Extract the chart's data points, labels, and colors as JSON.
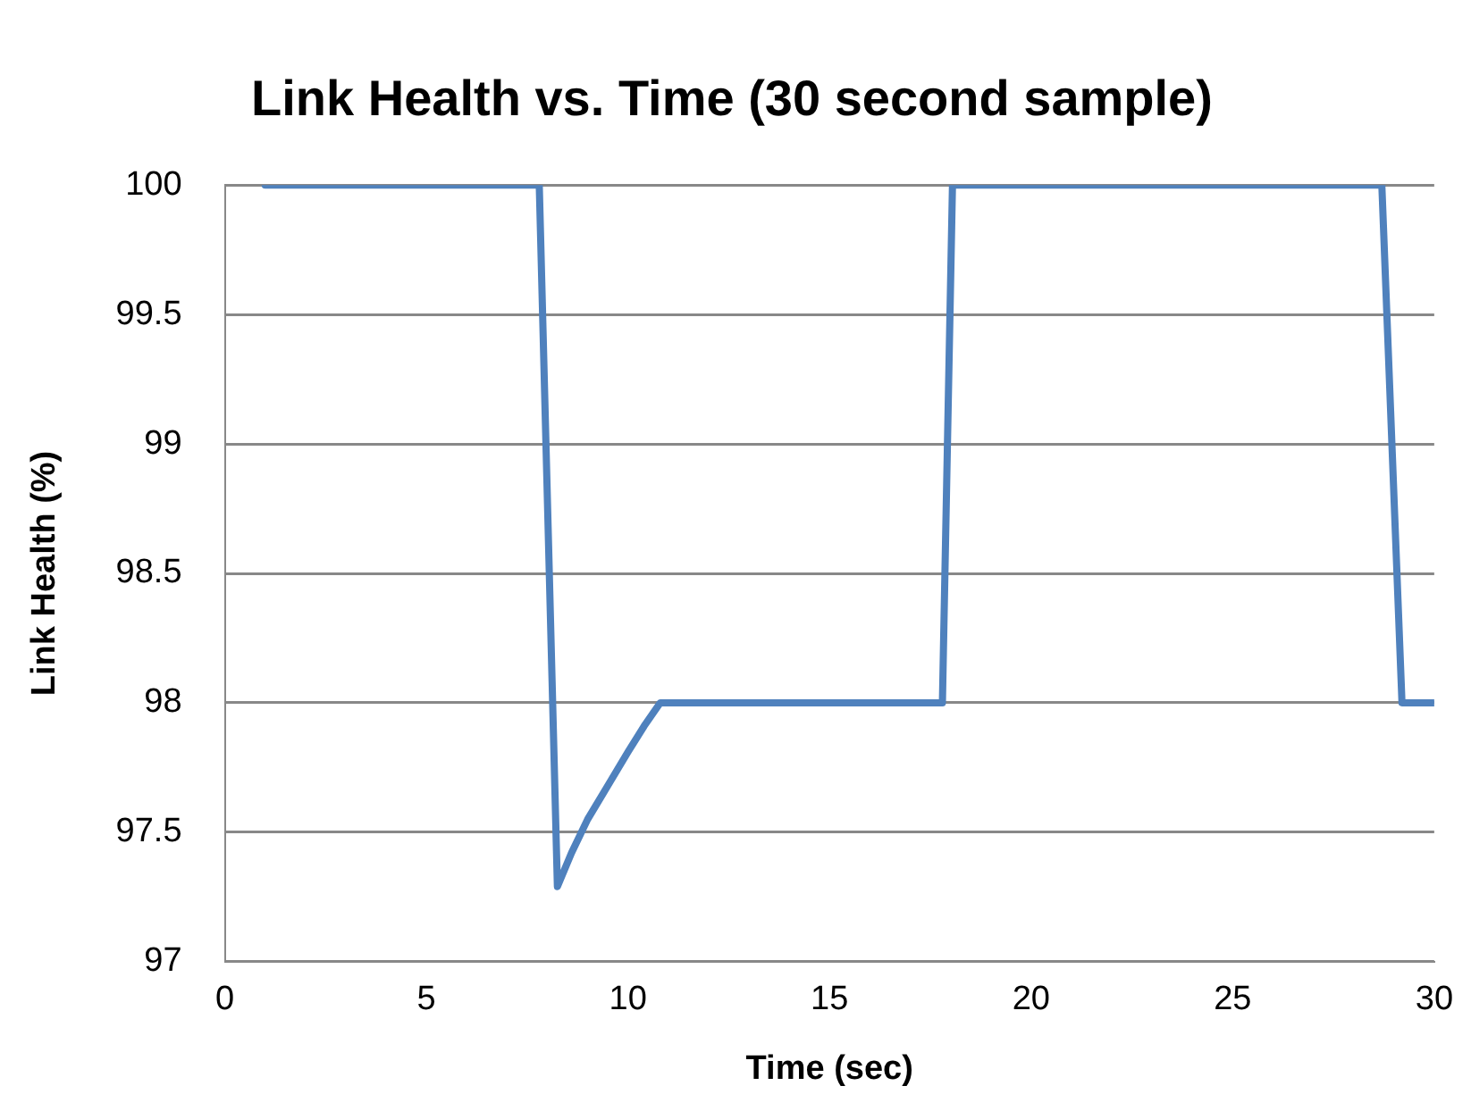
{
  "chart_data": {
    "type": "line",
    "title": "Link Health vs. Time (30 second sample)",
    "xlabel": "Time (sec)",
    "ylabel": "Link Health (%)",
    "series": [
      {
        "color": "#4f81bd",
        "x": [
          1,
          7.8,
          8.25,
          8.6,
          9,
          9.5,
          10,
          10.4,
          10.8,
          17.8,
          18.05,
          28.7,
          29.2,
          30
        ],
        "values": [
          100,
          100,
          97.29,
          97.42,
          97.55,
          97.68,
          97.81,
          97.91,
          98,
          98,
          100,
          100,
          98,
          98
        ]
      }
    ],
    "xlim": [
      0,
      30
    ],
    "xticks": [
      0,
      5,
      10,
      15,
      20,
      25,
      30
    ],
    "ylim": [
      97,
      100
    ],
    "yticks": [
      97,
      97.5,
      98,
      98.5,
      99,
      99.5,
      100
    ],
    "grid": "y",
    "legend": false,
    "marker": "none",
    "line_style": "solid"
  }
}
